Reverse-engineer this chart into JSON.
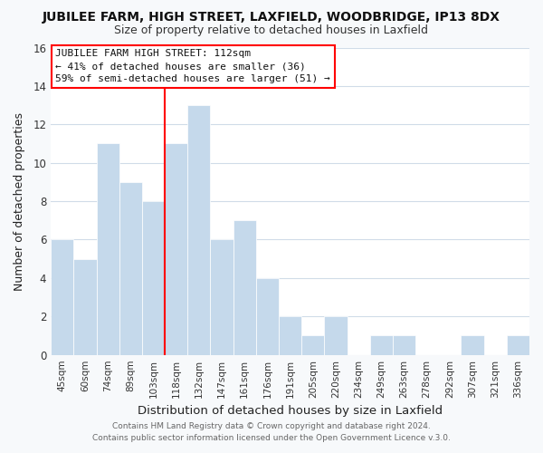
{
  "title": "JUBILEE FARM, HIGH STREET, LAXFIELD, WOODBRIDGE, IP13 8DX",
  "subtitle": "Size of property relative to detached houses in Laxfield",
  "xlabel": "Distribution of detached houses by size in Laxfield",
  "ylabel": "Number of detached properties",
  "bar_color": "#c5d9eb",
  "categories": [
    "45sqm",
    "60sqm",
    "74sqm",
    "89sqm",
    "103sqm",
    "118sqm",
    "132sqm",
    "147sqm",
    "161sqm",
    "176sqm",
    "191sqm",
    "205sqm",
    "220sqm",
    "234sqm",
    "249sqm",
    "263sqm",
    "278sqm",
    "292sqm",
    "307sqm",
    "321sqm",
    "336sqm"
  ],
  "values": [
    6,
    5,
    11,
    9,
    8,
    11,
    13,
    6,
    7,
    4,
    2,
    1,
    2,
    0,
    1,
    1,
    0,
    0,
    1,
    0,
    1
  ],
  "ylim": [
    0,
    16
  ],
  "yticks": [
    0,
    2,
    4,
    6,
    8,
    10,
    12,
    14,
    16
  ],
  "redline_index": 5,
  "annotation_title": "JUBILEE FARM HIGH STREET: 112sqm",
  "annotation_line1": "← 41% of detached houses are smaller (36)",
  "annotation_line2": "59% of semi-detached houses are larger (51) →",
  "footer1": "Contains HM Land Registry data © Crown copyright and database right 2024.",
  "footer2": "Contains public sector information licensed under the Open Government Licence v.3.0.",
  "background_color": "#f7f9fb",
  "plot_bg_color": "#ffffff",
  "grid_color": "#d0dce8"
}
